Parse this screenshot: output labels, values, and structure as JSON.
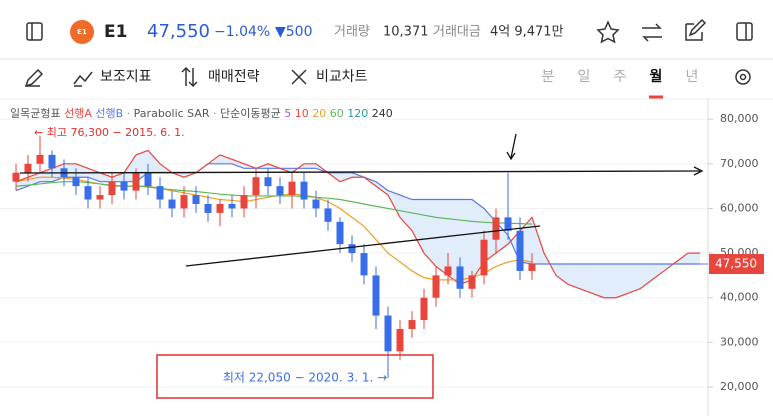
{
  "header": {
    "logo": "E1",
    "name": "E1",
    "price": "47,550",
    "change_pct": "−1.04%",
    "change": "▼500",
    "volume_label": "거래량",
    "volume": "10,371",
    "amount_label": "거래대금",
    "amount": "4억 9,471만"
  },
  "toolbar": {
    "items": [
      "보조지표",
      "매매전략",
      "비교차트"
    ],
    "periods": [
      "분",
      "일",
      "주",
      "월",
      "년"
    ],
    "active_period": 3
  },
  "chart_data": {
    "type": "candlestick",
    "title": "일목균형표",
    "legend": {
      "span_a": "선행A",
      "span_b": "선행B",
      "dot": "·",
      "sar": "Parabolic SAR",
      "ma": "단순이동평균",
      "ma_periods": [
        "5",
        "10",
        "20",
        "60",
        "120",
        "240"
      ],
      "ma_colors": [
        "#a05ad0",
        "#e8453c",
        "#f0a020",
        "#5cb85c",
        "#2a9d9d",
        "#333333"
      ]
    },
    "up_color": "#e8453c",
    "down_color": "#3a6ee8",
    "ylim": [
      13500,
      84300
    ],
    "yticks": [
      {
        "value": 80000,
        "label": "80,000"
      },
      {
        "value": 70000,
        "label": "70,000"
      },
      {
        "value": 60000,
        "label": "60,000"
      },
      {
        "value": 50000,
        "label": "50,000"
      },
      {
        "value": 40000,
        "label": "40,000"
      },
      {
        "value": 30000,
        "label": "30,000"
      },
      {
        "value": 20000,
        "label": "20,000"
      }
    ],
    "open": [
      66000,
      68000,
      70000,
      72000,
      69000,
      67000,
      65000,
      62000,
      63000,
      66000,
      64000,
      68000,
      65000,
      62000,
      60000,
      63000,
      61000,
      59000,
      61000,
      60000,
      63000,
      67000,
      65000,
      63000,
      66000,
      62000,
      60000,
      57000,
      52000,
      50000,
      45000,
      36000,
      28000,
      33000,
      35000,
      40000,
      45000,
      47000,
      42000,
      45000,
      53000,
      58000,
      55000,
      46000
    ],
    "high": [
      70000,
      72000,
      76300,
      73000,
      71000,
      69000,
      67000,
      65000,
      68000,
      68000,
      69000,
      70000,
      67000,
      64000,
      65000,
      65000,
      63000,
      62000,
      63000,
      65000,
      69000,
      69000,
      67000,
      68000,
      68000,
      64000,
      62000,
      58000,
      54000,
      52000,
      47000,
      38000,
      35000,
      37000,
      42000,
      47000,
      50000,
      49000,
      46000,
      55000,
      60000,
      68000,
      58000,
      50000
    ],
    "low": [
      64000,
      66000,
      68000,
      67000,
      65000,
      63000,
      60000,
      60000,
      61000,
      62000,
      62000,
      63000,
      60000,
      58000,
      58000,
      59000,
      57000,
      56000,
      58000,
      58000,
      60000,
      63000,
      61000,
      60000,
      60000,
      58000,
      55000,
      50000,
      48000,
      43000,
      33000,
      22050,
      26000,
      31000,
      33000,
      38000,
      43000,
      40000,
      40000,
      43000,
      50000,
      53000,
      44000,
      44000
    ],
    "close": [
      68000,
      70000,
      72000,
      69000,
      67000,
      65000,
      62000,
      63000,
      66000,
      64000,
      68000,
      65000,
      62000,
      60000,
      63000,
      61000,
      59000,
      61000,
      60000,
      63000,
      67000,
      65000,
      63000,
      66000,
      62000,
      60000,
      57000,
      52000,
      50000,
      45000,
      36000,
      28000,
      33000,
      35000,
      40000,
      45000,
      47000,
      42000,
      45000,
      53000,
      58000,
      55000,
      46000,
      47550
    ],
    "lines": [
      {
        "name": "20",
        "color": "#f0a020",
        "values": [
          66000,
          66500,
          67000,
          67000,
          66800,
          66500,
          66000,
          65500,
          65000,
          65000,
          65000,
          65000,
          64500,
          64000,
          63500,
          63000,
          62500,
          62000,
          61800,
          61500,
          62000,
          62500,
          63000,
          63200,
          63000,
          62500,
          61500,
          60000,
          58000,
          56000,
          53000,
          50000,
          48000,
          46000,
          44500,
          44000,
          44000,
          44000,
          44500,
          45500,
          47000,
          48000,
          48500,
          48000
        ]
      },
      {
        "name": "60",
        "color": "#5cb85c",
        "values": [
          65000,
          65200,
          65500,
          65800,
          66000,
          66000,
          65800,
          65500,
          65200,
          65000,
          65000,
          64800,
          64500,
          64200,
          64000,
          63800,
          63500,
          63200,
          63000,
          62800,
          62800,
          62800,
          62800,
          62800,
          62700,
          62500,
          62300,
          62000,
          61500,
          61000,
          60500,
          60000,
          59500,
          59000,
          58500,
          58000,
          57700,
          57400,
          57100,
          56900,
          56800,
          56700,
          56600,
          56500
        ]
      }
    ],
    "span_a": {
      "name": "선행A",
      "color": "#e8453c",
      "values": [
        66000,
        67000,
        68000,
        69000,
        70000,
        70000,
        69000,
        68000,
        67000,
        68000,
        72000,
        73000,
        70000,
        68000,
        67000,
        68000,
        70000,
        72000,
        71000,
        70000,
        69000,
        70000,
        69000,
        68000,
        70000,
        70000,
        68000,
        66000,
        67000,
        67000,
        65000,
        63000,
        58000,
        55000,
        50000,
        47000,
        45000,
        43000,
        44000,
        48000,
        50000,
        52000,
        55000,
        58000,
        50000,
        45000,
        43000,
        42000,
        41000,
        40000,
        40000,
        41000,
        42000,
        44000,
        46000,
        48000,
        50000,
        50000
      ]
    },
    "span_b": {
      "name": "선행B",
      "color": "#5a78e8",
      "values": [
        64000,
        65000,
        66000,
        66000,
        67000,
        67000,
        67000,
        66000,
        66000,
        66000,
        66000,
        68000,
        68000,
        68000,
        68000,
        68000,
        70000,
        70000,
        70000,
        69000,
        69000,
        69000,
        69000,
        69000,
        69000,
        69000,
        68000,
        68000,
        68000,
        67000,
        66000,
        64000,
        63000,
        62000,
        62000,
        62000,
        62000,
        62000,
        62000,
        60000,
        57000,
        54000,
        48000,
        47550,
        47550,
        47550,
        47550,
        47550,
        47550,
        47550,
        47550,
        47550,
        47550,
        47550,
        47550,
        47550,
        47550,
        47550
      ]
    },
    "annotations": {
      "high": "← 최고 76,300 − 2015. 6. 1.",
      "low": "최저 22,050 − 2020. 3. 1. →",
      "price": "47,550",
      "price_value": 47550
    }
  }
}
